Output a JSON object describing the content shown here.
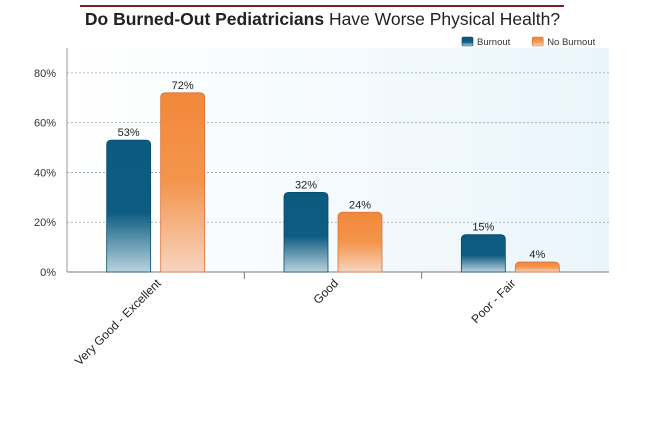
{
  "chart_data": {
    "type": "bar",
    "title": "Do Burned-Out Pediatricians Have Worse Physical Health?",
    "title_bold": "Do Burned-Out Pediatricians",
    "title_rest": " Have Worse Physical Health?",
    "categories": [
      "Very Good - Excellent",
      "Good",
      "Poor - Fair"
    ],
    "series": [
      {
        "name": "Burnout",
        "values": [
          53,
          32,
          15
        ],
        "labels": [
          "53%",
          "32%",
          "15%"
        ],
        "color": "#0e5a80"
      },
      {
        "name": "No Burnout",
        "values": [
          72,
          24,
          4
        ],
        "labels": [
          "72%",
          "24%",
          "4%"
        ],
        "color": "#f28a3c"
      }
    ],
    "ylim": [
      0,
      90
    ],
    "yticks": [
      0,
      20,
      40,
      60,
      80
    ],
    "ytick_labels": [
      "0%",
      "20%",
      "40%",
      "60%",
      "80%"
    ],
    "grid": true,
    "legend_position": "top-right",
    "xlabel": "",
    "ylabel": ""
  }
}
